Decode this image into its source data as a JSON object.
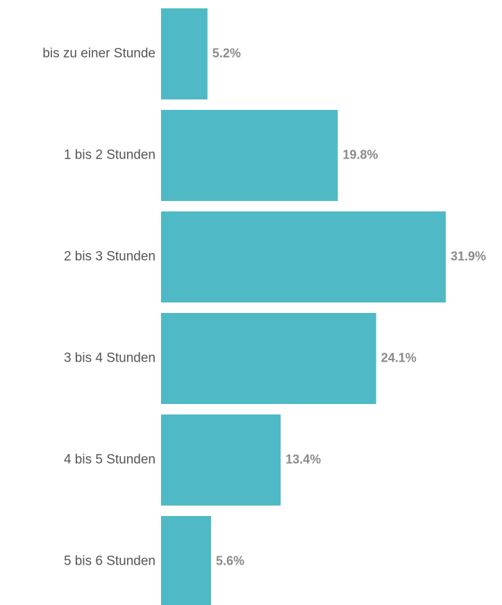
{
  "chart_data": {
    "type": "bar",
    "orientation": "horizontal",
    "categories": [
      "bis zu einer Stunde",
      "1 bis 2 Stunden",
      "2 bis 3 Stunden",
      "3 bis 4 Stunden",
      "4 bis 5 Stunden",
      "5 bis 6 Stunden"
    ],
    "values": [
      5.2,
      19.8,
      31.9,
      24.1,
      13.4,
      5.6
    ],
    "value_labels": [
      "5.2%",
      "19.8%",
      "31.9%",
      "24.1%",
      "13.4%",
      "5.6%"
    ],
    "color": "#4fbac6"
  }
}
